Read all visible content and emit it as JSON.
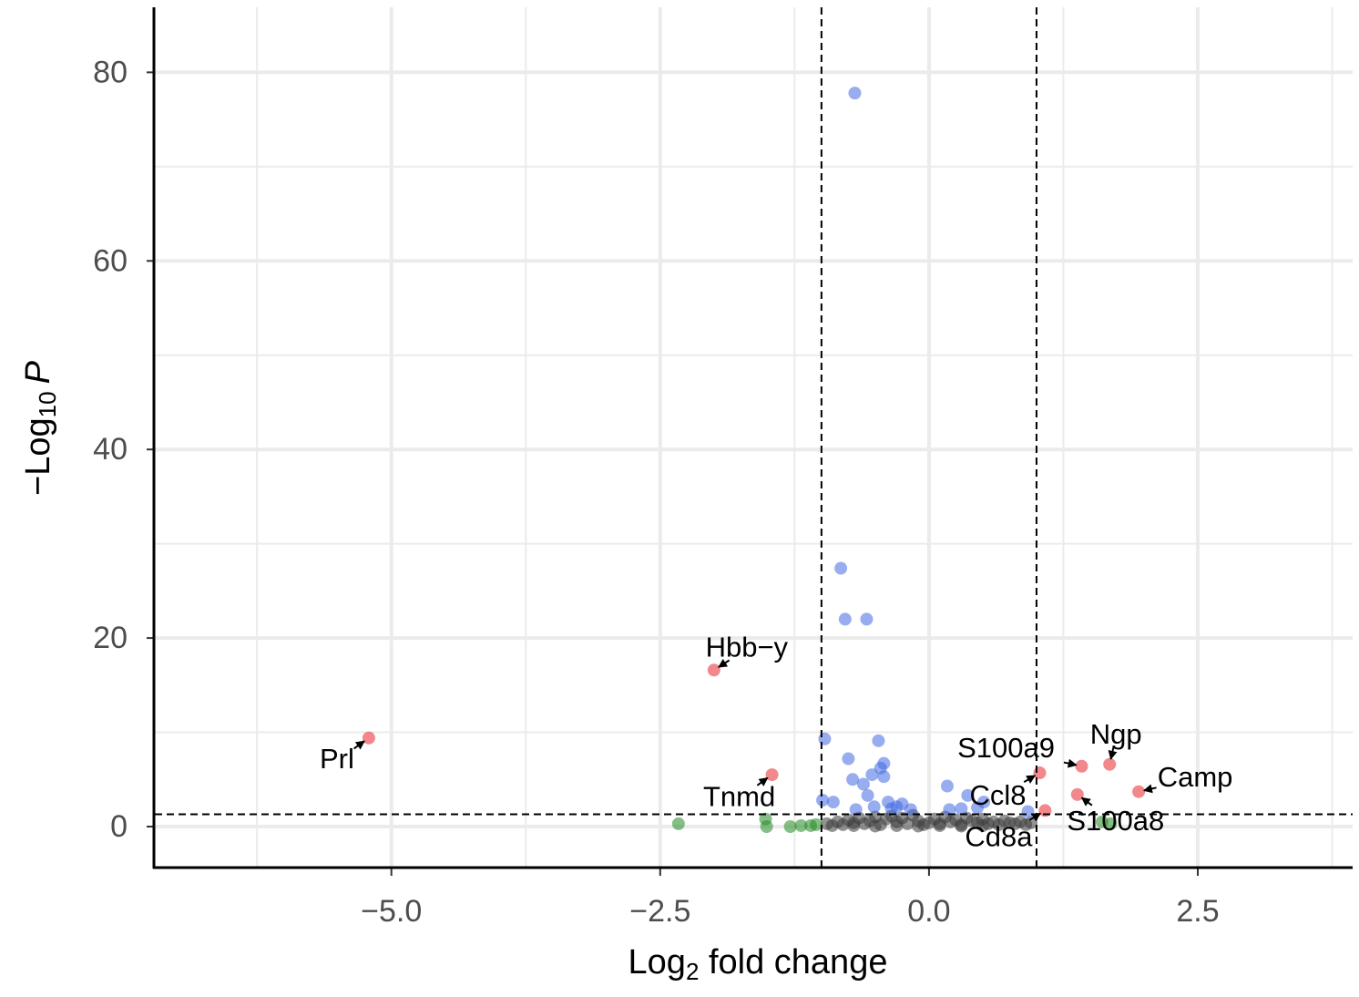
{
  "chart_data": {
    "type": "scatter",
    "x_label": [
      "Log",
      "2",
      " fold change"
    ],
    "y_label": [
      "−Log",
      "10",
      "P"
    ],
    "xlim": [
      -7.2,
      3.94
    ],
    "ylim": [
      -4.35,
      86.9
    ],
    "xticks": [
      {
        "value": -5.0,
        "label": "−5.0"
      },
      {
        "value": -2.5,
        "label": "−2.5"
      },
      {
        "value": 0.0,
        "label": "0.0"
      },
      {
        "value": 2.5,
        "label": "2.5"
      }
    ],
    "yticks": [
      0,
      20,
      40,
      60,
      80
    ],
    "x_minor_grid": [
      -6.25,
      -3.75,
      -1.25,
      1.25,
      3.75
    ],
    "y_minor_grid": [
      10,
      30,
      50,
      70
    ],
    "grid": true,
    "vlines": [
      -1,
      1
    ],
    "hline": 1.3,
    "alpha": 0.55,
    "series": [
      {
        "color": "#3a3a3a",
        "x": [
          -0.95,
          -0.9,
          -0.85,
          -0.8,
          -0.75,
          -0.7,
          -0.65,
          -0.6,
          -0.55,
          -0.5,
          -0.45,
          -0.4,
          -0.35,
          -0.3,
          -0.25,
          -0.2,
          -0.15,
          -0.1,
          -0.05,
          0.0,
          0.05,
          0.1,
          0.15,
          0.2,
          0.25,
          0.3,
          0.35,
          0.4,
          0.45,
          0.5,
          0.55,
          0.6,
          0.65,
          0.7,
          0.75,
          0.8,
          0.85,
          0.9,
          0.95,
          -0.3,
          -0.1,
          0.1,
          0.3,
          -0.5,
          0.5,
          -0.7
        ],
        "y": [
          0.3,
          0.1,
          0.5,
          0.2,
          0.7,
          0.4,
          0.9,
          0.3,
          0.6,
          1.0,
          0.2,
          0.8,
          1.1,
          0.5,
          0.9,
          0.3,
          1.2,
          0.6,
          0.2,
          0.4,
          0.8,
          0.3,
          1.0,
          0.5,
          0.7,
          0.2,
          0.9,
          0.6,
          0.4,
          0.8,
          0.3,
          0.5,
          0.2,
          0.6,
          0.4,
          0.3,
          0.5,
          0.2,
          0.4,
          0.1,
          0.05,
          0.1,
          0.05,
          0.05,
          0.1,
          0.1
        ]
      },
      {
        "color": "#228b22",
        "x": [
          -2.33,
          -1.51,
          -1.29,
          -1.19,
          -1.1,
          1.69,
          1.61,
          -1.52,
          -1.05
        ],
        "y": [
          0.3,
          0.0,
          0.0,
          0.1,
          0.1,
          0.3,
          0.5,
          0.8,
          0.2
        ]
      },
      {
        "color": "#4169e1",
        "x": [
          -0.69,
          -0.82,
          -0.78,
          -0.58,
          -0.97,
          -0.47,
          -0.75,
          -0.42,
          -0.53,
          -0.71,
          -0.61,
          -0.42,
          -0.99,
          -0.89,
          -0.57,
          0.17,
          0.36,
          0.51,
          -0.38,
          -0.25,
          -0.17,
          -0.68,
          0.19,
          0.92,
          -0.51,
          -0.3,
          -0.45,
          -0.35,
          0.3,
          0.45
        ],
        "y": [
          77.8,
          27.4,
          22.0,
          22.0,
          9.3,
          9.1,
          7.2,
          6.7,
          5.5,
          5.0,
          4.5,
          5.3,
          2.8,
          2.6,
          3.3,
          4.3,
          3.3,
          2.6,
          2.6,
          2.4,
          1.8,
          1.8,
          1.8,
          1.6,
          2.1,
          2.1,
          6.2,
          1.9,
          1.9,
          2.0
        ]
      },
      {
        "color": "#e8262b",
        "labels": [
          "Prl",
          "Hbb−y",
          "Tnmd",
          "Ccl8",
          "Cd8a",
          "S100a9",
          "Ngp",
          "S100a8",
          "Camp"
        ],
        "x": [
          -5.21,
          -2.0,
          -1.46,
          1.03,
          1.08,
          1.42,
          1.68,
          1.38,
          1.95
        ],
        "y": [
          9.4,
          16.6,
          5.5,
          5.7,
          1.7,
          6.4,
          6.6,
          3.4,
          3.7
        ]
      }
    ]
  }
}
